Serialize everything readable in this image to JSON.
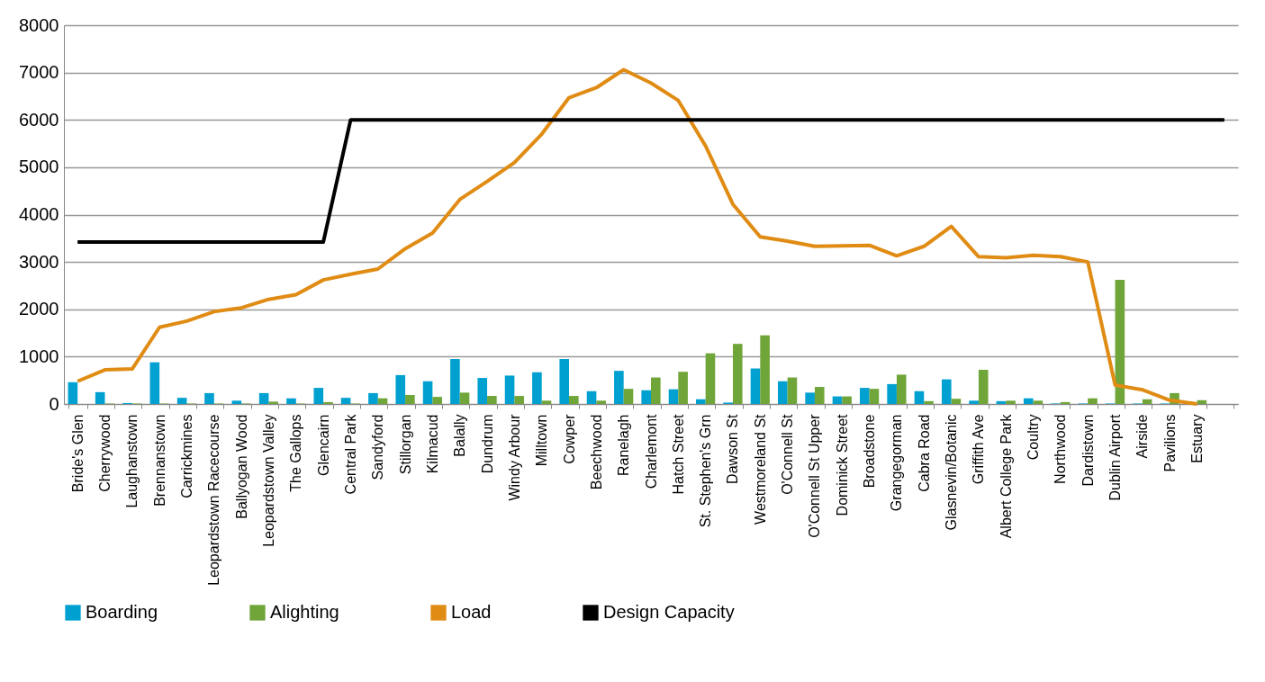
{
  "chart_data": {
    "type": "bar",
    "categories": [
      "Bride's Glen",
      "Cherrywood",
      "Laughanstown",
      "Brennanstown",
      "Carrickmines",
      "Leopardstown Racecourse",
      "Ballyogan Wood",
      "Leopardstown Valley",
      "The Gallops",
      "Glencairn",
      "Central Park",
      "Sandyford",
      "Stillorgan",
      "Kilmacud",
      "Balally",
      "Dundrum",
      "Windy Arbour",
      "Milltown",
      "Cowper",
      "Beechwood",
      "Ranelagh",
      "Charlemont",
      "Hatch Street",
      "St. Stephen's Grn",
      "Dawson St",
      "Westmoreland St",
      "O'Connell St",
      "O'Connell St Upper",
      "Dominick Street",
      "Broadstone",
      "Grangegorman",
      "Cabra Road",
      "Glasnevin/Botanic",
      "Griffith Ave",
      "Albert College Park",
      "Coultry",
      "Northwood",
      "Dardistown",
      "Dublin Airport",
      "Airside",
      "Pavilions",
      "Estuary",
      null
    ],
    "series": [
      {
        "name": "Boarding",
        "color": "#00a0d0",
        "values": [
          460,
          250,
          20,
          880,
          130,
          230,
          70,
          230,
          120,
          340,
          130,
          230,
          610,
          480,
          950,
          550,
          600,
          670,
          950,
          270,
          700,
          290,
          310,
          100,
          30,
          750,
          480,
          240,
          160,
          340,
          420,
          270,
          520,
          70,
          60,
          120,
          10,
          10,
          10,
          10,
          10,
          0,
          null
        ]
      },
      {
        "name": "Alighting",
        "color": "#70a53a",
        "values": [
          0,
          10,
          10,
          10,
          10,
          10,
          10,
          50,
          10,
          40,
          10,
          120,
          190,
          150,
          240,
          170,
          170,
          70,
          170,
          70,
          320,
          560,
          680,
          1070,
          1270,
          1450,
          560,
          360,
          160,
          320,
          620,
          60,
          110,
          720,
          70,
          70,
          40,
          120,
          2620,
          100,
          230,
          80,
          null
        ]
      },
      {
        "name": "Load",
        "type": "line",
        "color": "#e08c14",
        "values": [
          480,
          720,
          740,
          1620,
          1750,
          1950,
          2030,
          2210,
          2310,
          2620,
          2740,
          2850,
          3280,
          3610,
          4320,
          4700,
          5100,
          5700,
          6470,
          6680,
          7060,
          6780,
          6410,
          5450,
          4220,
          3530,
          3440,
          3330,
          3340,
          3350,
          3130,
          3330,
          3750,
          3110,
          3090,
          3140,
          3110,
          3000,
          400,
          300,
          80,
          0,
          null
        ]
      },
      {
        "name": "Design Capacity",
        "type": "line",
        "color": "#000000",
        "values": [
          3420,
          3420,
          3420,
          3420,
          3420,
          3420,
          3420,
          3420,
          3420,
          3420,
          6000,
          6000,
          6000,
          6000,
          6000,
          6000,
          6000,
          6000,
          6000,
          6000,
          6000,
          6000,
          6000,
          6000,
          6000,
          6000,
          6000,
          6000,
          6000,
          6000,
          6000,
          6000,
          6000,
          6000,
          6000,
          6000,
          6000,
          6000,
          6000,
          6000,
          6000,
          6000,
          6000
        ]
      }
    ],
    "ylim": [
      0,
      8000
    ],
    "yticks": [
      0,
      1000,
      2000,
      3000,
      4000,
      5000,
      6000,
      7000,
      8000
    ],
    "grid": "y",
    "legend": "bottom"
  }
}
